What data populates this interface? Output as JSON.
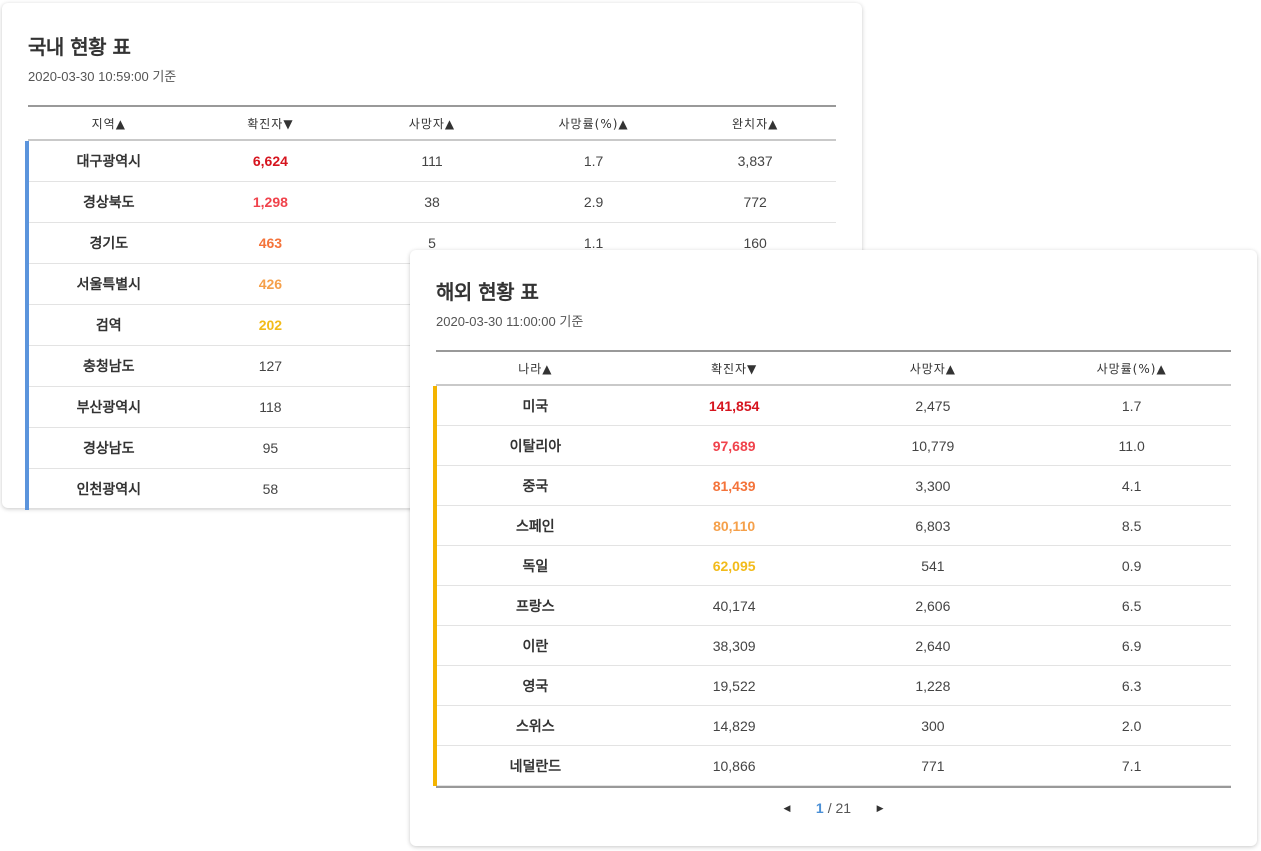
{
  "domestic": {
    "title": "국내 현황 표",
    "timestamp": "2020-03-30 10:59:00 기준",
    "headers": [
      "지역▲",
      "확진자▼",
      "사망자▲",
      "사망률(%)▲",
      "완치자▲"
    ],
    "rows": [
      {
        "name": "대구광역시",
        "confirmed": "6,624",
        "deaths": "111",
        "rate": "1.7",
        "recovered": "3,837"
      },
      {
        "name": "경상북도",
        "confirmed": "1,298",
        "deaths": "38",
        "rate": "2.9",
        "recovered": "772"
      },
      {
        "name": "경기도",
        "confirmed": "463",
        "deaths": "5",
        "rate": "1.1",
        "recovered": "160"
      },
      {
        "name": "서울특별시",
        "confirmed": "426",
        "deaths": "",
        "rate": "",
        "recovered": ""
      },
      {
        "name": "검역",
        "confirmed": "202",
        "deaths": "",
        "rate": "",
        "recovered": ""
      },
      {
        "name": "충청남도",
        "confirmed": "127",
        "deaths": "",
        "rate": "",
        "recovered": ""
      },
      {
        "name": "부산광역시",
        "confirmed": "118",
        "deaths": "",
        "rate": "",
        "recovered": ""
      },
      {
        "name": "경상남도",
        "confirmed": "95",
        "deaths": "",
        "rate": "",
        "recovered": ""
      },
      {
        "name": "인천광역시",
        "confirmed": "58",
        "deaths": "",
        "rate": "",
        "recovered": ""
      }
    ]
  },
  "overseas": {
    "title": "해외 현황 표",
    "timestamp": "2020-03-30 11:00:00 기준",
    "headers": [
      "나라▲",
      "확진자▼",
      "사망자▲",
      "사망률(%)▲"
    ],
    "rows": [
      {
        "name": "미국",
        "confirmed": "141,854",
        "deaths": "2,475",
        "rate": "1.7"
      },
      {
        "name": "이탈리아",
        "confirmed": "97,689",
        "deaths": "10,779",
        "rate": "11.0"
      },
      {
        "name": "중국",
        "confirmed": "81,439",
        "deaths": "3,300",
        "rate": "4.1"
      },
      {
        "name": "스페인",
        "confirmed": "80,110",
        "deaths": "6,803",
        "rate": "8.5"
      },
      {
        "name": "독일",
        "confirmed": "62,095",
        "deaths": "541",
        "rate": "0.9"
      },
      {
        "name": "프랑스",
        "confirmed": "40,174",
        "deaths": "2,606",
        "rate": "6.5"
      },
      {
        "name": "이란",
        "confirmed": "38,309",
        "deaths": "2,640",
        "rate": "6.9"
      },
      {
        "name": "영국",
        "confirmed": "19,522",
        "deaths": "1,228",
        "rate": "6.3"
      },
      {
        "name": "스위스",
        "confirmed": "14,829",
        "deaths": "300",
        "rate": "2.0"
      },
      {
        "name": "네덜란드",
        "confirmed": "10,866",
        "deaths": "771",
        "rate": "7.1"
      }
    ],
    "pagination": {
      "current": "1",
      "rest": "/ 21",
      "prev_icon": "caret-left-icon",
      "next_icon": "caret-right-icon"
    }
  },
  "colors": {
    "domestic_accent": "#5b94dc",
    "overseas_accent": "#f4b400",
    "rank_colors": [
      "#d6141e",
      "#f0424b",
      "#f4733a",
      "#f5a04a",
      "#f2bb1a"
    ]
  }
}
